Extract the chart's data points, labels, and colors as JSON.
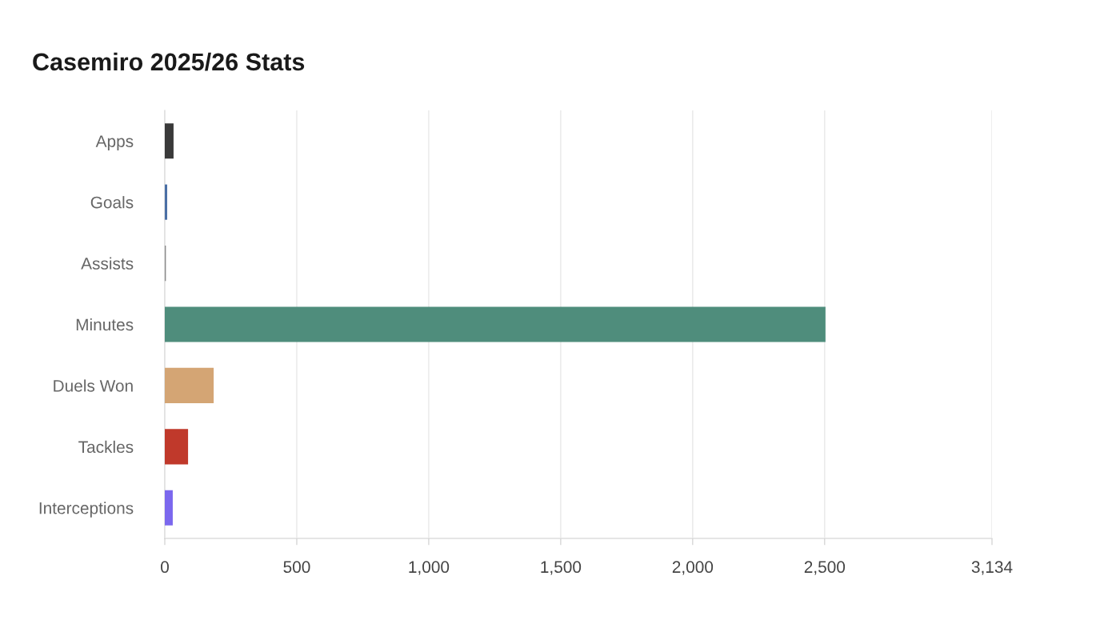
{
  "chart_data": {
    "type": "bar",
    "orientation": "horizontal",
    "title": "Casemiro 2025/26 Stats",
    "categories": [
      "Apps",
      "Goals",
      "Assists",
      "Minutes",
      "Duels Won",
      "Tackles",
      "Interceptions"
    ],
    "values": [
      30,
      6,
      1,
      2500,
      182,
      85,
      27
    ],
    "colors": [
      "#3a3a3a",
      "#4a6fa5",
      "#8a8a8a",
      "#4f8d7c",
      "#d4a574",
      "#c0392b",
      "#7b68ee"
    ],
    "xlim": [
      0,
      3134
    ],
    "xticks": [
      {
        "value": 0,
        "label": "0"
      },
      {
        "value": 500,
        "label": "500"
      },
      {
        "value": 1000,
        "label": "1,000"
      },
      {
        "value": 1500,
        "label": "1,500"
      },
      {
        "value": 2000,
        "label": "2,000"
      },
      {
        "value": 2500,
        "label": "2,500"
      },
      {
        "value": 3134,
        "label": "3,134"
      }
    ],
    "grid": "x",
    "legend": false
  }
}
